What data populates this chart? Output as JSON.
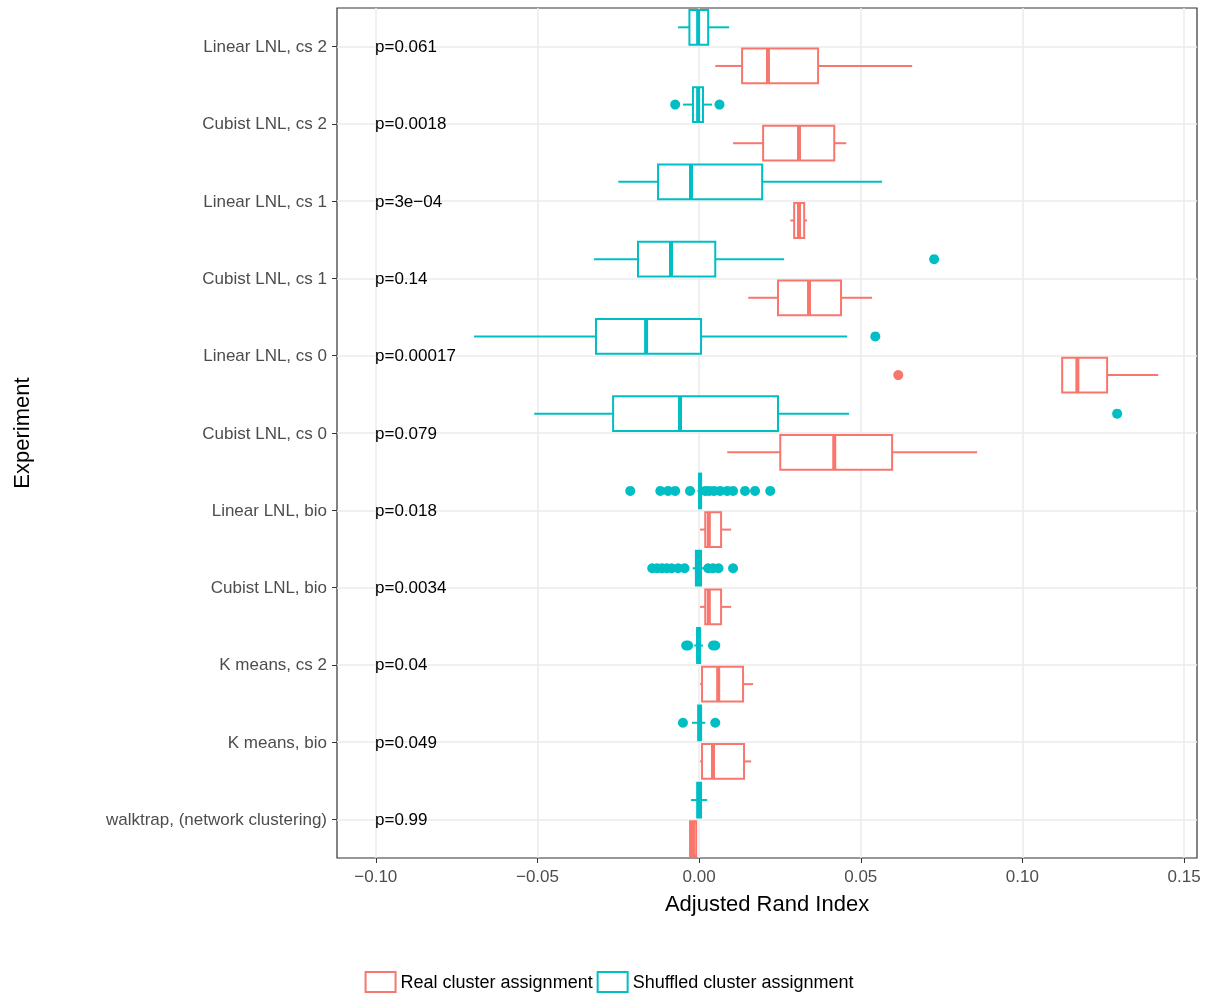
{
  "chart_data": {
    "type": "box",
    "orientation": "horizontal",
    "xlabel": "Adjusted Rand Index",
    "ylabel": "Experiment",
    "categories": [
      "Linear LNL, cs 2",
      "Cubist LNL, cs 2",
      "Linear LNL, cs 1",
      "Cubist LNL, cs 1",
      "Linear LNL, cs 0",
      "Cubist LNL, cs 0",
      "Linear LNL, bio",
      "Cubist LNL, bio",
      "K means, cs 2",
      "K means, bio",
      "walktrap, (network clustering)"
    ],
    "xlim": [
      -0.112,
      0.154
    ],
    "xticks": [
      {
        "value": -0.1,
        "label": "−0.10"
      },
      {
        "value": -0.05,
        "label": "−0.05"
      },
      {
        "value": 0,
        "label": "0.00"
      },
      {
        "value": 0.05,
        "label": "0.05"
      },
      {
        "value": 0.1,
        "label": "0.10"
      },
      {
        "value": 0.15,
        "label": "0.15"
      }
    ],
    "grid": true,
    "legend": "bottom",
    "series": [
      {
        "name": "Real cluster assignment",
        "color": "#f8766d",
        "boxes": [
          {
            "low": 0.005,
            "q1": 0.0133,
            "median": 0.0213,
            "q3": 0.0368,
            "high": 0.0659
          },
          {
            "low": 0.0105,
            "q1": 0.0198,
            "median": 0.0309,
            "q3": 0.0418,
            "high": 0.0455
          },
          {
            "low": 0.0282,
            "q1": 0.0294,
            "median": 0.0309,
            "q3": 0.0325,
            "high": 0.0334
          },
          {
            "low": 0.0152,
            "q1": 0.0244,
            "median": 0.034,
            "q3": 0.0439,
            "high": 0.0535
          },
          {
            "low": 0.1123,
            "q1": 0.1123,
            "median": 0.117,
            "q3": 0.1262,
            "high": 0.142,
            "outliers": [
              0.0616
            ]
          },
          {
            "low": 0.0087,
            "q1": 0.0251,
            "median": 0.0418,
            "q3": 0.0597,
            "high": 0.086
          },
          {
            "low": 0.0003,
            "q1": 0.0019,
            "median": 0.003,
            "q3": 0.0068,
            "high": 0.0099
          },
          {
            "low": 0.0003,
            "q1": 0.0019,
            "median": 0.003,
            "q3": 0.0068,
            "high": 0.0099
          },
          {
            "low": 0.0003,
            "q1": 0.0009,
            "median": 0.0059,
            "q3": 0.0136,
            "high": 0.0167
          },
          {
            "low": 0.0003,
            "q1": 0.0009,
            "median": 0.0043,
            "q3": 0.0139,
            "high": 0.0161
          },
          {
            "low": -0.0028,
            "q1": -0.0028,
            "median": -0.0019,
            "q3": -0.0009,
            "high": -0.0009
          }
        ]
      },
      {
        "name": "Shuffled cluster assignment",
        "color": "#00bfc4",
        "boxes": [
          {
            "low": -0.0065,
            "q1": -0.003,
            "median": -0.0003,
            "q3": 0.0028,
            "high": 0.0093
          },
          {
            "low": -0.005,
            "q1": -0.0019,
            "median": -0.0003,
            "q3": 0.0012,
            "high": 0.004,
            "outliers": [
              -0.0074,
              0.0063
            ]
          },
          {
            "low": -0.025,
            "q1": -0.0127,
            "median": -0.0025,
            "q3": 0.0195,
            "high": 0.0566
          },
          {
            "low": -0.0325,
            "q1": -0.0189,
            "median": -0.0087,
            "q3": 0.005,
            "high": 0.0263,
            "outliers": [
              0.0727
            ]
          },
          {
            "low": -0.0696,
            "q1": -0.0319,
            "median": -0.0164,
            "q3": 0.0006,
            "high": 0.0458,
            "outliers": [
              0.0545
            ]
          },
          {
            "low": -0.051,
            "q1": -0.0266,
            "median": -0.0059,
            "q3": 0.0244,
            "high": 0.0464,
            "outliers": [
              0.1293
            ]
          },
          {
            "low": -0.0005,
            "q1": 0.0,
            "median": 0.0003,
            "q3": 0.0006,
            "high": 0.001,
            "outliers": [
              -0.0213,
              -0.012,
              -0.0096,
              -0.0074,
              -0.0028,
              0.0019,
              0.0031,
              0.0046,
              0.0065,
              0.0087,
              0.0105,
              0.0142,
              0.0173,
              0.022
            ]
          },
          {
            "low": -0.002,
            "q1": -0.001,
            "median": -0.0003,
            "q3": 0.0006,
            "high": 0.0016,
            "outliers": [
              -0.0145,
              -0.013,
              -0.0115,
              -0.01,
              -0.0085,
              -0.0065,
              -0.0045,
              0.0028,
              0.0043,
              0.006,
              0.0105
            ]
          },
          {
            "low": -0.0015,
            "q1": -0.0006,
            "median": -0.0003,
            "q3": 0.0003,
            "high": 0.0012,
            "outliers": [
              -0.004,
              -0.0034,
              0.0043,
              0.005
            ]
          },
          {
            "low": -0.0022,
            "q1": -0.0003,
            "median": 0.0003,
            "q3": 0.0006,
            "high": 0.0019,
            "outliers": [
              -0.005,
              0.005
            ]
          },
          {
            "low": -0.0025,
            "q1": -0.0006,
            "median": 0.0,
            "q3": 0.0006,
            "high": 0.0025
          }
        ]
      }
    ],
    "annotations": [
      "p=0.061",
      "p=0.0018",
      "p=3e−04",
      "p=0.14",
      "p=0.00017",
      "p=0.079",
      "p=0.018",
      "p=0.0034",
      "p=0.04",
      "p=0.049",
      "p=0.99"
    ]
  }
}
